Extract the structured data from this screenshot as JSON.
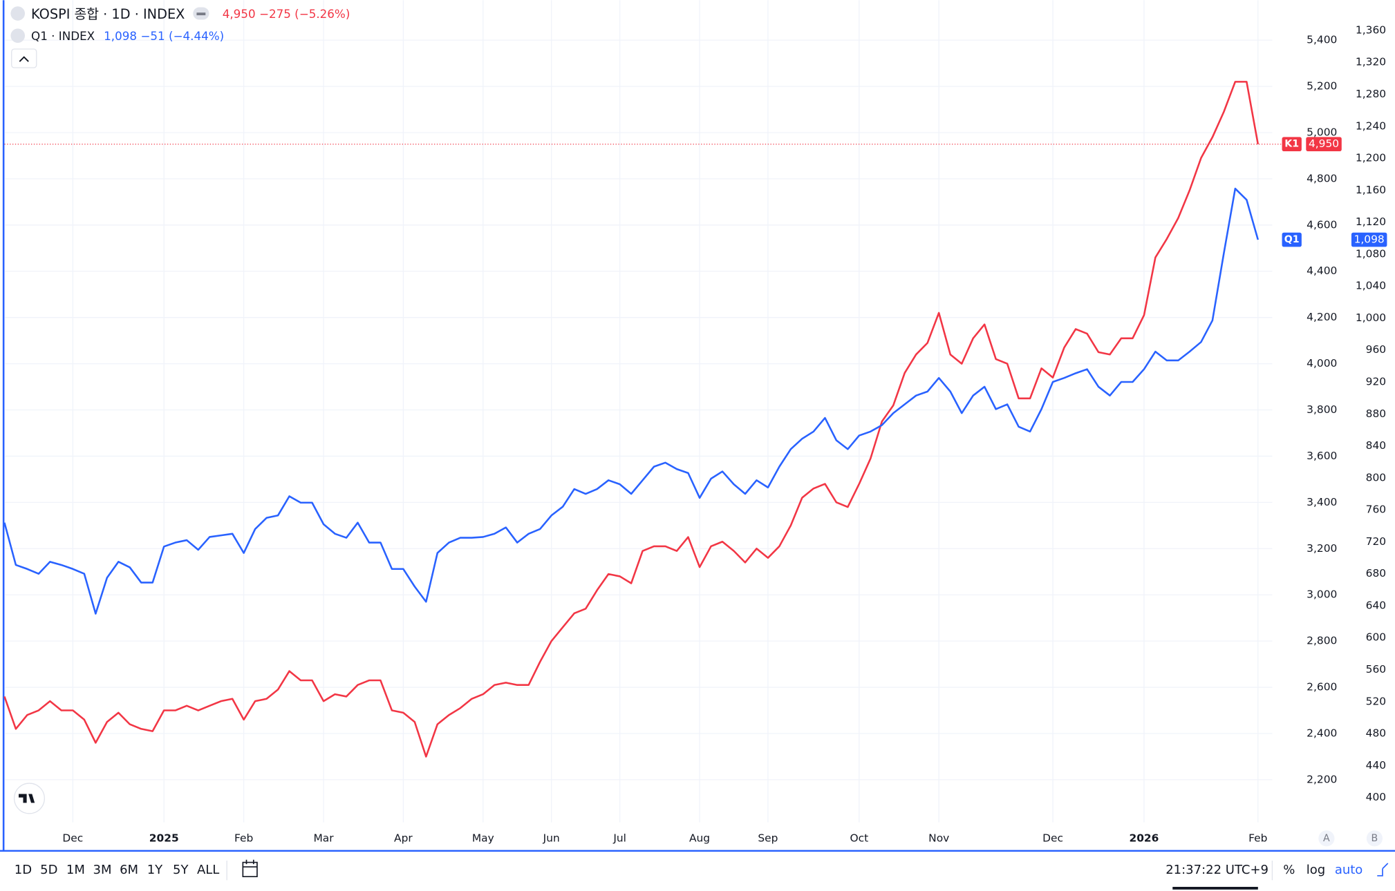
{
  "legend": [
    {
      "price": "4,950",
      "change": "−275 (−5.26%)"
    },
    {
      "price": "1,098",
      "change": "−51 (−4.44%)"
    }
  ],
  "chart_data": {
    "type": "line",
    "categories": [
      null,
      null,
      null,
      null,
      null,
      null,
      "Dec",
      null,
      null,
      null,
      null,
      null,
      null,
      null,
      "2025",
      null,
      null,
      null,
      null,
      null,
      null,
      "Feb",
      null,
      null,
      null,
      null,
      null,
      null,
      "Mar",
      null,
      null,
      null,
      null,
      null,
      null,
      "Apr",
      null,
      null,
      null,
      null,
      null,
      null,
      "May",
      null,
      null,
      null,
      null,
      null,
      "Jun",
      null,
      null,
      null,
      null,
      null,
      "Jul",
      null,
      null,
      null,
      null,
      null,
      null,
      "Aug",
      null,
      null,
      null,
      null,
      null,
      "Sep",
      null,
      null,
      null,
      null,
      null,
      null,
      null,
      "Oct",
      null,
      null,
      null,
      null,
      null,
      null,
      "Nov",
      null,
      null,
      null,
      null,
      null,
      null,
      null,
      null,
      null,
      "Dec",
      null,
      null,
      null,
      null,
      null,
      null,
      null,
      "2026",
      null,
      null,
      null,
      null,
      null,
      null,
      null,
      null,
      null,
      "Feb"
    ],
    "series": [
      {
        "name": "KOSPI 종합 · 1D · INDEX",
        "color": "#f23645",
        "values": [
          2560,
          2420,
          2480,
          2500,
          2540,
          2500,
          2500,
          2460,
          2360,
          2450,
          2490,
          2440,
          2420,
          2410,
          2500,
          2500,
          2520,
          2500,
          2520,
          2540,
          2550,
          2460,
          2540,
          2550,
          2590,
          2670,
          2630,
          2630,
          2540,
          2570,
          2560,
          2610,
          2630,
          2630,
          2500,
          2490,
          2450,
          2300,
          2440,
          2480,
          2510,
          2550,
          2570,
          2610,
          2620,
          2610,
          2610,
          2710,
          2800,
          2860,
          2920,
          2940,
          3020,
          3090,
          3080,
          3050,
          3190,
          3210,
          3210,
          3190,
          3250,
          3120,
          3210,
          3230,
          3190,
          3140,
          3200,
          3160,
          3210,
          3300,
          3420,
          3460,
          3480,
          3400,
          3380,
          3480,
          3590,
          3750,
          3820,
          3960,
          4040,
          4090,
          4220,
          4040,
          4000,
          4110,
          4170,
          4020,
          4000,
          3850,
          3850,
          3980,
          3940,
          4070,
          4150,
          4130,
          4050,
          4040,
          4110,
          4110,
          4210,
          4460,
          4540,
          4630,
          4750,
          4890,
          4980,
          5090,
          5220,
          5220,
          4950
        ]
      },
      {
        "name": "Q1 · INDEX",
        "color": "#2962ff",
        "axis": "y2",
        "values": [
          744,
          691,
          686,
          680,
          695,
          691,
          686,
          680,
          630,
          675,
          695,
          688,
          669,
          669,
          714,
          719,
          722,
          710,
          726,
          728,
          730,
          706,
          736,
          750,
          753,
          777,
          769,
          769,
          742,
          730,
          725,
          744,
          719,
          719,
          686,
          686,
          664,
          645,
          706,
          719,
          725,
          725,
          726,
          730,
          738,
          719,
          730,
          736,
          753,
          764,
          786,
          780,
          786,
          797,
          792,
          780,
          797,
          814,
          819,
          811,
          806,
          775,
          799,
          808,
          792,
          780,
          797,
          788,
          814,
          836,
          849,
          858,
          875,
          847,
          836,
          853,
          858,
          866,
          881,
          892,
          903,
          908,
          925,
          908,
          881,
          903,
          914,
          886,
          892,
          864,
          858,
          886,
          920,
          925,
          931,
          936,
          914,
          903,
          920,
          920,
          936,
          958,
          947,
          947,
          958,
          970,
          997,
          1081,
          1162,
          1148,
          1098
        ]
      }
    ],
    "ylim": [
      2200,
      5400
    ],
    "yticks": [
      {
        "value": 2200,
        "label": "2,200"
      },
      {
        "value": 2400,
        "label": "2,400"
      },
      {
        "value": 2600,
        "label": "2,600"
      },
      {
        "value": 2800,
        "label": "2,800"
      },
      {
        "value": 3000,
        "label": "3,000"
      },
      {
        "value": 3200,
        "label": "3,200"
      },
      {
        "value": 3400,
        "label": "3,400"
      },
      {
        "value": 3600,
        "label": "3,600"
      },
      {
        "value": 3800,
        "label": "3,800"
      },
      {
        "value": 4000,
        "label": "4,000"
      },
      {
        "value": 4200,
        "label": "4,200"
      },
      {
        "value": 4400,
        "label": "4,400"
      },
      {
        "value": 4600,
        "label": "4,600"
      },
      {
        "value": 4800,
        "label": "4,800"
      },
      {
        "value": 5000,
        "label": "5,000"
      },
      {
        "value": 5200,
        "label": "5,200"
      },
      {
        "value": 5400,
        "label": "5,400"
      }
    ],
    "y2lim": [
      400,
      1360
    ],
    "y2ticks": [
      400,
      440,
      480,
      520,
      560,
      600,
      640,
      680,
      720,
      760,
      800,
      840,
      880,
      920,
      960,
      {
        "value": 1000,
        "label": "1,000"
      },
      {
        "value": 1040,
        "label": "1,040"
      },
      {
        "value": 1080,
        "label": "1,080"
      },
      {
        "value": 1120,
        "label": "1,120"
      },
      {
        "value": 1160,
        "label": "1,160"
      },
      {
        "value": 1200,
        "label": "1,200"
      },
      {
        "value": 1240,
        "label": "1,240"
      },
      {
        "value": 1280,
        "label": "1,280"
      },
      {
        "value": 1320,
        "label": "1,320"
      },
      {
        "value": 1360,
        "label": "1,360"
      }
    ],
    "grid": true,
    "price_tags": [
      {
        "label": "K1",
        "value": "4,950"
      },
      {
        "label": "Q1",
        "value": "1,098"
      }
    ]
  },
  "axis_buttons": [
    "A",
    "B"
  ],
  "toolbar": {
    "ranges": [
      "1D",
      "5D",
      "1M",
      "3M",
      "6M",
      "1Y",
      "5Y",
      "ALL"
    ],
    "time": "21:37:22 UTC+9",
    "options": [
      "%",
      "log",
      "auto"
    ]
  }
}
